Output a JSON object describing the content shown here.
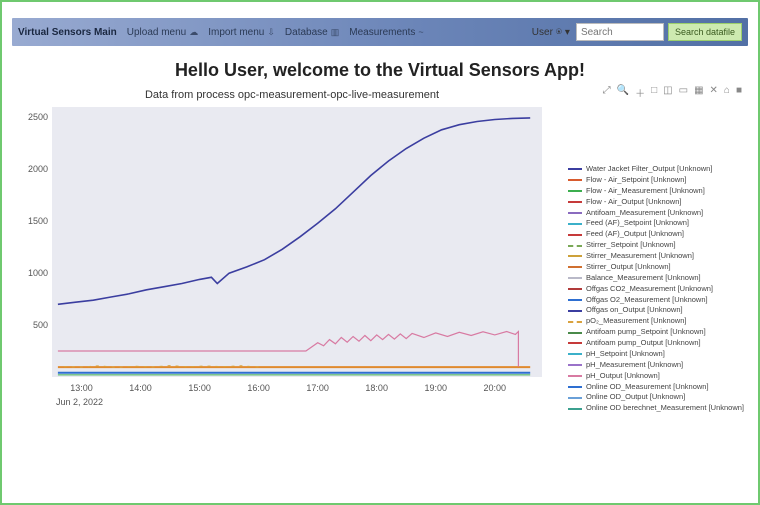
{
  "nav": {
    "brand": "Virtual Sensors Main",
    "items": [
      {
        "label": "Upload menu",
        "icon": "☁"
      },
      {
        "label": "Import menu",
        "icon": "⇩"
      },
      {
        "label": "Database",
        "icon": "▥"
      },
      {
        "label": "Measurements",
        "icon": "~"
      }
    ],
    "user_label": "User",
    "search_placeholder": "Search",
    "search_button": "Search datafile"
  },
  "hello": "Hello User, welcome to the Virtual Sensors App!",
  "toolbar_icons": [
    "⤢",
    "🔍",
    "＋",
    "□",
    "◫",
    "▭",
    "▦",
    "✕",
    "⌂",
    "■"
  ],
  "chart": {
    "title": "Data from process opc-measurement-opc-live-measurement",
    "background": "#e9eaf1",
    "ylim": [
      0,
      2600
    ],
    "yticks": [
      500,
      1000,
      1500,
      2000,
      2500
    ],
    "xticks": [
      "13:00",
      "14:00",
      "15:00",
      "16:00",
      "17:00",
      "18:00",
      "19:00",
      "20:00"
    ],
    "xdate": "Jun 2, 2022",
    "x_range": [
      12.5,
      20.8
    ],
    "series": {
      "main": {
        "color": "#3b3ea0",
        "width": 1.6,
        "points": [
          [
            12.6,
            700
          ],
          [
            12.9,
            720
          ],
          [
            13.2,
            740
          ],
          [
            13.5,
            770
          ],
          [
            13.8,
            800
          ],
          [
            14.1,
            840
          ],
          [
            14.4,
            870
          ],
          [
            14.7,
            900
          ],
          [
            15.0,
            940
          ],
          [
            15.2,
            960
          ],
          [
            15.3,
            900
          ],
          [
            15.5,
            1000
          ],
          [
            15.8,
            1060
          ],
          [
            16.1,
            1130
          ],
          [
            16.4,
            1230
          ],
          [
            16.7,
            1350
          ],
          [
            17.0,
            1480
          ],
          [
            17.3,
            1620
          ],
          [
            17.6,
            1780
          ],
          [
            17.9,
            1940
          ],
          [
            18.2,
            2080
          ],
          [
            18.5,
            2200
          ],
          [
            18.8,
            2300
          ],
          [
            19.1,
            2380
          ],
          [
            19.4,
            2430
          ],
          [
            19.7,
            2460
          ],
          [
            20.0,
            2480
          ],
          [
            20.3,
            2490
          ],
          [
            20.6,
            2495
          ]
        ]
      },
      "pink": {
        "color": "#d87aa2",
        "width": 1.2,
        "points": [
          [
            12.6,
            250
          ],
          [
            16.8,
            250
          ],
          [
            17.0,
            330
          ],
          [
            17.1,
            300
          ],
          [
            17.2,
            360
          ],
          [
            17.3,
            320
          ],
          [
            17.4,
            380
          ],
          [
            17.5,
            335
          ],
          [
            17.6,
            390
          ],
          [
            17.7,
            345
          ],
          [
            17.8,
            400
          ],
          [
            17.9,
            350
          ],
          [
            18.0,
            405
          ],
          [
            18.1,
            360
          ],
          [
            18.2,
            410
          ],
          [
            18.3,
            365
          ],
          [
            18.4,
            415
          ],
          [
            18.5,
            370
          ],
          [
            18.6,
            420
          ],
          [
            18.8,
            380
          ],
          [
            19.0,
            425
          ],
          [
            19.2,
            390
          ],
          [
            19.4,
            430
          ],
          [
            19.6,
            400
          ],
          [
            19.8,
            435
          ],
          [
            20.0,
            405
          ],
          [
            20.2,
            438
          ],
          [
            20.35,
            410
          ],
          [
            20.4,
            438
          ],
          [
            20.4,
            100
          ]
        ]
      },
      "orange": {
        "color": "#e08a2e",
        "width": 2,
        "points": [
          [
            12.6,
            95
          ],
          [
            20.6,
            95
          ]
        ]
      },
      "blue": {
        "color": "#2e6fd1",
        "width": 2,
        "points": [
          [
            12.6,
            40
          ],
          [
            20.6,
            40
          ]
        ]
      },
      "green": {
        "color": "#3cae4f",
        "width": 1,
        "points": [
          [
            12.6,
            20
          ],
          [
            20.6,
            20
          ]
        ]
      },
      "orange_dash": {
        "color": "#d9a23e",
        "width": 1,
        "dash": "3 5",
        "points": [
          [
            12.7,
            100
          ],
          [
            13.0,
            95
          ],
          [
            13.3,
            108
          ],
          [
            13.6,
            92
          ],
          [
            13.9,
            104
          ],
          [
            14.2,
            96
          ],
          [
            14.5,
            110
          ],
          [
            14.8,
            98
          ],
          [
            15.1,
            106
          ],
          [
            15.4,
            100
          ],
          [
            15.7,
            108
          ],
          [
            16.0,
            96
          ]
        ]
      }
    }
  },
  "legend": [
    {
      "color": "#3b3ea0",
      "label": "Water Jacket Filter_Output [Unknown]"
    },
    {
      "color": "#d85b2e",
      "label": "Flow - Air_Setpoint [Unknown]"
    },
    {
      "color": "#3cae4f",
      "label": "Flow - Air_Measurement [Unknown]"
    },
    {
      "color": "#c63a3a",
      "label": "Flow - Air_Output [Unknown]"
    },
    {
      "color": "#8a6bbf",
      "label": "Antifoam_Measurement [Unknown]"
    },
    {
      "color": "#3bb0c9",
      "label": "Feed (AF)_Setpoint [Unknown]"
    },
    {
      "color": "#c63a3a",
      "label": "Feed (AF)_Output [Unknown]"
    },
    {
      "color": "#7aa857",
      "label": "Stirrer_Setpoint [Unknown]",
      "style": "dashed"
    },
    {
      "color": "#cda13a",
      "label": "Stirrer_Measurement [Unknown]"
    },
    {
      "color": "#d07030",
      "label": "Stirrer_Output [Unknown]"
    },
    {
      "color": "#b9b9c8",
      "label": "Balance_Measurement [Unknown]"
    },
    {
      "color": "#b13a3a",
      "label": "Offgas CO2_Measurement [Unknown]"
    },
    {
      "color": "#2e6fd1",
      "label": "Offgas O2_Measurement [Unknown]"
    },
    {
      "color": "#3b3ea0",
      "label": "Offgas on_Output [Unknown]"
    },
    {
      "color": "#d9a23e",
      "label": "pO₂_Measurement [Unknown]",
      "style": "dashed"
    },
    {
      "color": "#4a8a4a",
      "label": "Antifoam pump_Setpoint [Unknown]"
    },
    {
      "color": "#c63a3a",
      "label": "Antifoam pump_Output [Unknown]"
    },
    {
      "color": "#3bb0c9",
      "label": "pH_Setpoint [Unknown]"
    },
    {
      "color": "#9a72c9",
      "label": "pH_Measurement [Unknown]"
    },
    {
      "color": "#d87aa2",
      "label": "pH_Output [Unknown]"
    },
    {
      "color": "#2e6fd1",
      "label": "Online OD_Measurement [Unknown]"
    },
    {
      "color": "#6aa0d8",
      "label": "Online OD_Output [Unknown]"
    },
    {
      "color": "#3ba08f",
      "label": "Online OD berechnet_Measurement [Unknown]"
    }
  ]
}
